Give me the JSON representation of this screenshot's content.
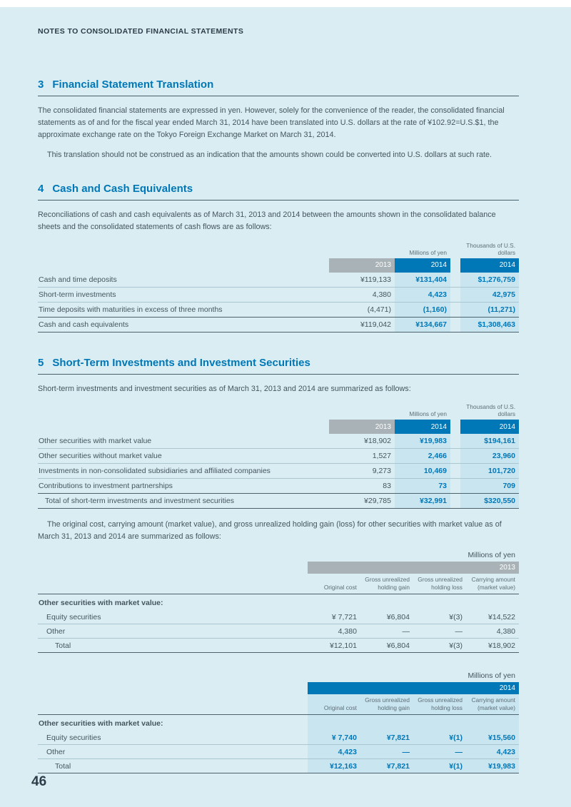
{
  "colors": {
    "accent_blue": "#0077b6",
    "header_gray": "#a9b2b6",
    "column_shade": "#c8e5f0",
    "page_background": "#d9edf2"
  },
  "page": {
    "header": "NOTES TO CONSOLIDATED FINANCIAL STATEMENTS",
    "page_number": "46"
  },
  "sec3": {
    "number": "3",
    "title": "Financial Statement Translation",
    "para1": "The consolidated financial statements are expressed in yen. However, solely for the convenience of the reader, the consolidated financial statements as of and for the fiscal year ended March 31, 2014 have been translated into U.S. dollars at the rate of ¥102.92=U.S.$1, the approximate exchange rate on the Tokyo Foreign Exchange Market on March 31, 2014.",
    "para2": "This translation should not be construed as an indication that the amounts shown could be converted into U.S. dollars at such rate."
  },
  "sec4": {
    "number": "4",
    "title": "Cash and Cash Equivalents",
    "intro": "Reconciliations of cash and cash equivalents as of March 31, 2013 and 2014 between the amounts shown in the consolidated balance sheets and the consolidated statements of cash flows are as follows:",
    "table": {
      "unit_yen": "Millions of yen",
      "unit_usd": "Thousands of U.S. dollars",
      "col_2013": "2013",
      "col_2014_yen": "2014",
      "col_2014_usd": "2014",
      "rows": [
        {
          "label": "Cash and time deposits",
          "y2013": "¥119,133",
          "y2014": "¥131,404",
          "usd": "$1,276,759"
        },
        {
          "label": "Short-term investments",
          "y2013": "4,380",
          "y2014": "4,423",
          "usd": "42,975"
        },
        {
          "label": "Time deposits with maturities in excess of three months",
          "y2013": "(4,471)",
          "y2014": "(1,160)",
          "usd": "(11,271)"
        },
        {
          "label": "Cash and cash equivalents",
          "y2013": "¥119,042",
          "y2014": "¥134,667",
          "usd": "$1,308,463"
        }
      ]
    }
  },
  "sec5": {
    "number": "5",
    "title": "Short-Term Investments and Investment Securities",
    "intro": "Short-term investments and investment securities as of March 31, 2013 and 2014 are summarized as follows:",
    "table": {
      "unit_yen": "Millions of yen",
      "unit_usd": "Thousands of U.S. dollars",
      "col_2013": "2013",
      "col_2014_yen": "2014",
      "col_2014_usd": "2014",
      "rows": [
        {
          "label": "Other securities with market value",
          "y2013": "¥18,902",
          "y2014": "¥19,983",
          "usd": "$194,161"
        },
        {
          "label": "Other securities without market value",
          "y2013": "1,527",
          "y2014": "2,466",
          "usd": "23,960"
        },
        {
          "label": "Investments in non-consolidated subsidiaries and affiliated companies",
          "y2013": "9,273",
          "y2014": "10,469",
          "usd": "101,720"
        },
        {
          "label": "Contributions to investment partnerships",
          "y2013": "83",
          "y2014": "73",
          "usd": "709"
        },
        {
          "label": "Total of short-term investments and investment securities",
          "y2013": "¥29,785",
          "y2014": "¥32,991",
          "usd": "$320,550"
        }
      ]
    },
    "para": "The original cost, carrying amount (market value), and gross unrealized holding gain (loss) for other securities with market value as of March 31, 2013 and 2014 are summarized as follows:",
    "t2013": {
      "unit": "Millions of yen",
      "year": "2013",
      "cols": [
        "Original cost",
        "Gross unrealized holding gain",
        "Gross unrealized holding loss",
        "Carrying amount (market value)"
      ],
      "group": "Other securities with market value:",
      "rows": [
        {
          "label": "Equity securities",
          "cost": "¥ 7,721",
          "gain": "¥6,804",
          "loss": "¥(3)",
          "carry": "¥14,522"
        },
        {
          "label": "Other",
          "cost": "4,380",
          "gain": "—",
          "loss": "—",
          "carry": "4,380"
        },
        {
          "label": "Total",
          "cost": "¥12,101",
          "gain": "¥6,804",
          "loss": "¥(3)",
          "carry": "¥18,902"
        }
      ]
    },
    "t2014": {
      "unit": "Millions of yen",
      "year": "2014",
      "cols": [
        "Original cost",
        "Gross unrealized holding gain",
        "Gross unrealized holding loss",
        "Carrying amount (market value)"
      ],
      "group": "Other securities with market value:",
      "rows": [
        {
          "label": "Equity securities",
          "cost": "¥ 7,740",
          "gain": "¥7,821",
          "loss": "¥(1)",
          "carry": "¥15,560"
        },
        {
          "label": "Other",
          "cost": "4,423",
          "gain": "—",
          "loss": "—",
          "carry": "4,423"
        },
        {
          "label": "Total",
          "cost": "¥12,163",
          "gain": "¥7,821",
          "loss": "¥(1)",
          "carry": "¥19,983"
        }
      ]
    }
  }
}
